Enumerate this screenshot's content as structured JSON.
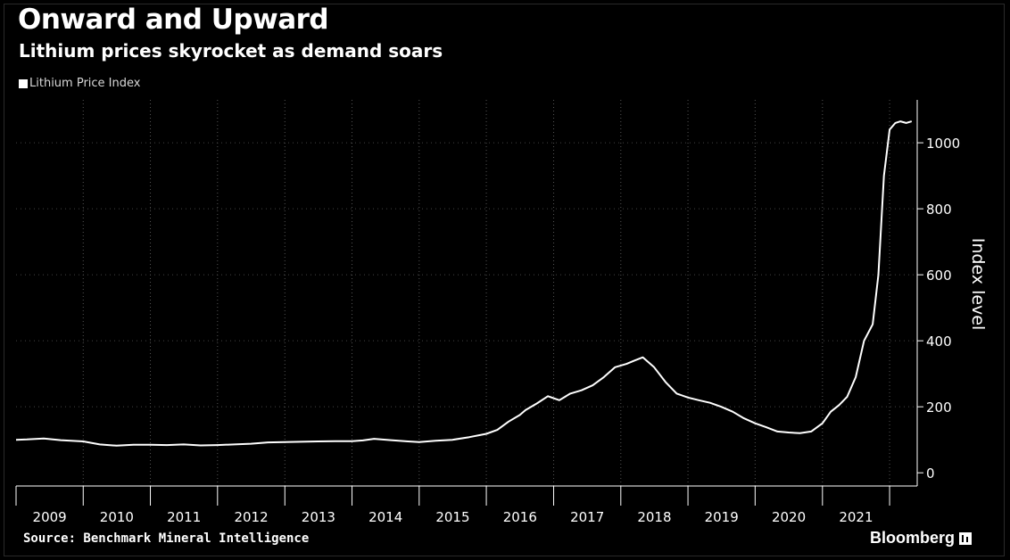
{
  "header": {
    "title": "Onward and Upward",
    "subtitle": "Lithium prices skyrocket as demand soars"
  },
  "legend": {
    "label": "Lithium Price Index"
  },
  "footer": {
    "source": "Source: Benchmark Mineral Intelligence",
    "brand": "Bloomberg",
    "brand_icon": "bloomberg-terminal-icon"
  },
  "colors": {
    "background": "#000000",
    "line": "#ffffff",
    "grid": "#555555"
  },
  "chart_data": {
    "type": "line",
    "title": "Onward and Upward",
    "subtitle": "Lithium prices skyrocket as demand soars",
    "ylabel": "Index level",
    "xlabel": "",
    "ylim": [
      -40,
      1130
    ],
    "xlim": [
      "2009-01-01",
      "2022-05-31"
    ],
    "yticks": [
      0,
      200,
      400,
      600,
      800,
      1000
    ],
    "year_labels": [
      "2009",
      "2010",
      "2011",
      "2012",
      "2013",
      "2014",
      "2015",
      "2016",
      "2017",
      "2018",
      "2019",
      "2020",
      "2021"
    ],
    "grid": "vertical dotted at year boundaries",
    "legend_position": "top-left",
    "series": [
      {
        "name": "Lithium Price Index",
        "x": [
          "2009-01-01",
          "2009-03-01",
          "2009-06-01",
          "2009-09-01",
          "2010-01-01",
          "2010-04-01",
          "2010-07-01",
          "2010-10-01",
          "2011-01-01",
          "2011-04-01",
          "2011-07-01",
          "2011-10-01",
          "2012-01-01",
          "2012-04-01",
          "2012-07-01",
          "2012-10-01",
          "2013-01-01",
          "2013-04-01",
          "2013-07-01",
          "2013-10-01",
          "2014-01-01",
          "2014-03-01",
          "2014-05-01",
          "2014-08-01",
          "2014-11-01",
          "2015-01-01",
          "2015-04-01",
          "2015-07-01",
          "2015-10-01",
          "2016-01-01",
          "2016-03-01",
          "2016-05-01",
          "2016-07-01",
          "2016-08-01",
          "2016-10-01",
          "2016-12-01",
          "2017-02-01",
          "2017-04-01",
          "2017-06-01",
          "2017-08-01",
          "2017-10-01",
          "2017-12-01",
          "2018-02-01",
          "2018-03-15",
          "2018-05-01",
          "2018-07-01",
          "2018-09-01",
          "2018-11-01",
          "2019-01-01",
          "2019-03-01",
          "2019-05-01",
          "2019-07-01",
          "2019-09-01",
          "2019-11-01",
          "2020-01-01",
          "2020-03-01",
          "2020-05-01",
          "2020-07-01",
          "2020-09-01",
          "2020-11-01",
          "2021-01-01",
          "2021-02-15",
          "2021-04-01",
          "2021-05-15",
          "2021-07-01",
          "2021-08-15",
          "2021-10-01",
          "2021-11-01",
          "2021-12-01",
          "2022-01-01",
          "2022-02-01",
          "2022-03-01",
          "2022-04-01",
          "2022-05-01"
        ],
        "y": [
          100,
          101,
          104,
          99,
          95,
          86,
          82,
          85,
          85,
          84,
          86,
          83,
          84,
          86,
          88,
          92,
          93,
          94,
          95,
          96,
          96,
          98,
          103,
          99,
          95,
          93,
          97,
          100,
          108,
          118,
          130,
          155,
          175,
          190,
          210,
          232,
          220,
          240,
          250,
          265,
          290,
          320,
          330,
          340,
          350,
          320,
          275,
          240,
          228,
          220,
          212,
          200,
          185,
          165,
          150,
          138,
          125,
          122,
          120,
          125,
          150,
          185,
          205,
          230,
          290,
          400,
          450,
          600,
          900,
          1040,
          1060,
          1065,
          1060,
          1065
        ]
      }
    ]
  }
}
